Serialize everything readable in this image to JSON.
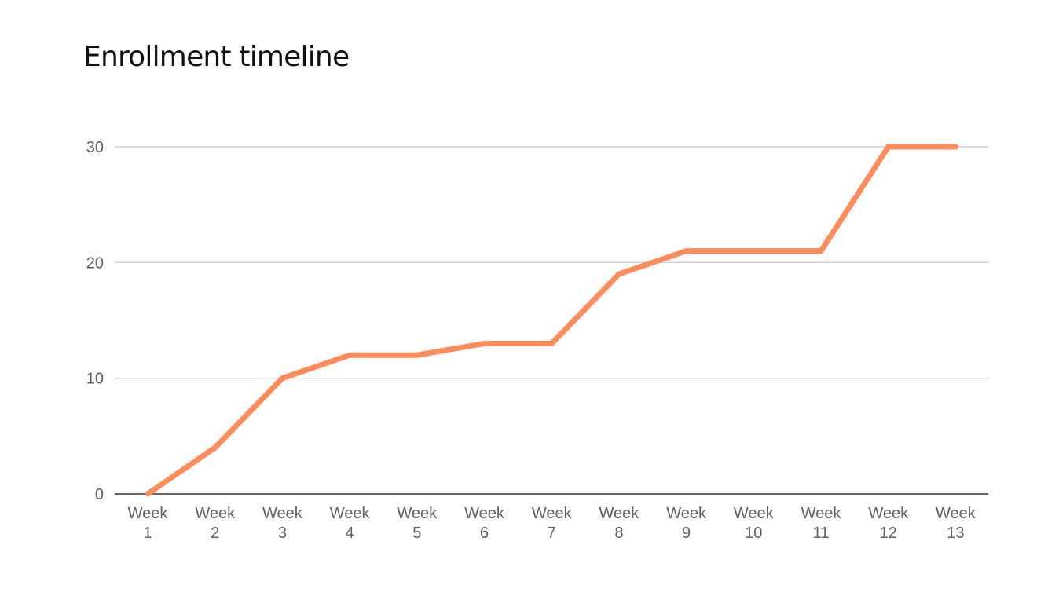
{
  "chart_data": {
    "type": "line",
    "title": "Enrollment timeline",
    "xlabel": "",
    "ylabel": "",
    "categories": [
      [
        "Week",
        "1"
      ],
      [
        "Week",
        "2"
      ],
      [
        "Week",
        "3"
      ],
      [
        "Week",
        "4"
      ],
      [
        "Week",
        "5"
      ],
      [
        "Week",
        "6"
      ],
      [
        "Week",
        "7"
      ],
      [
        "Week",
        "8"
      ],
      [
        "Week",
        "9"
      ],
      [
        "Week",
        "10"
      ],
      [
        "Week",
        "11"
      ],
      [
        "Week",
        "12"
      ],
      [
        "Week",
        "13"
      ]
    ],
    "series": [
      {
        "values": [
          0,
          4,
          10,
          12,
          12,
          13,
          13,
          19,
          21,
          21,
          21,
          30,
          30
        ],
        "color": "#ff8c5a"
      }
    ],
    "ylim": [
      0,
      30
    ],
    "yticks": [
      "0",
      "10",
      "20",
      "30"
    ],
    "grid": true,
    "legend": "none"
  }
}
